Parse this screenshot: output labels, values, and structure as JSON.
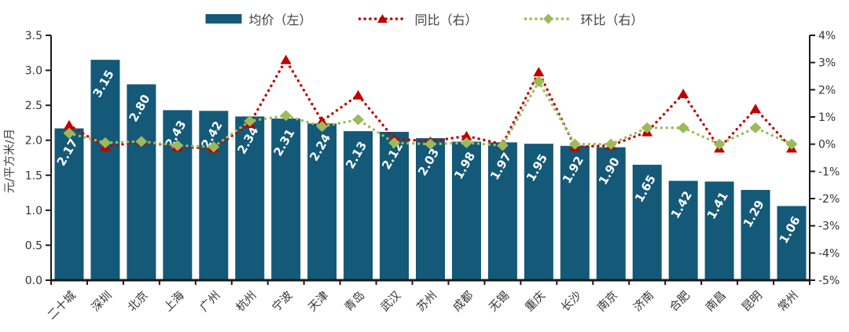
{
  "legend": {
    "items": [
      {
        "label": "均价（左）",
        "swatch": "bar",
        "color": "#145978"
      },
      {
        "label": "同比（右）",
        "swatch": "dotted-line-triangle",
        "color": "#C00000"
      },
      {
        "label": "环比（右）",
        "swatch": "dotted-line-diamond",
        "color": "#9BBB59"
      }
    ]
  },
  "chart_data": {
    "type": "bar",
    "title": "",
    "grid": false,
    "legend_position": "top",
    "categories": [
      "二十城",
      "深圳",
      "北京",
      "上海",
      "广州",
      "杭州",
      "宁波",
      "天津",
      "青岛",
      "武汉",
      "苏州",
      "成都",
      "无锡",
      "重庆",
      "长沙",
      "南京",
      "济南",
      "合肥",
      "南昌",
      "昆明",
      "常州"
    ],
    "series": [
      {
        "name": "均价（左）",
        "type": "bar",
        "axis": "left",
        "color": "#145978",
        "values": [
          2.17,
          3.15,
          2.8,
          2.43,
          2.42,
          2.34,
          2.31,
          2.24,
          2.13,
          2.12,
          2.03,
          1.98,
          1.97,
          1.95,
          1.92,
          1.9,
          1.65,
          1.42,
          1.41,
          1.29,
          1.06
        ],
        "labels": [
          "2.17",
          "3.15",
          "2.80",
          "2.43",
          "2.42",
          "2.34",
          "2.31",
          "2.24",
          "2.13",
          "2.12",
          "2.03",
          "1.98",
          "1.97",
          "1.95",
          "1.92",
          "1.90",
          "1.65",
          "1.42",
          "1.41",
          "1.29",
          "1.06"
        ]
      },
      {
        "name": "同比（右）",
        "type": "line",
        "style": "dotted",
        "axis": "right",
        "color": "#C00000",
        "marker": "triangle-up",
        "values_pct": [
          0.7,
          -0.1,
          0.1,
          -0.1,
          -0.15,
          0.75,
          3.1,
          0.85,
          1.8,
          0.2,
          0.1,
          0.3,
          0,
          2.65,
          -0.1,
          -0.05,
          0.45,
          1.85,
          -0.15,
          1.3,
          -0.15
        ]
      },
      {
        "name": "环比（右）",
        "type": "line",
        "style": "dotted",
        "axis": "right",
        "color": "#9BBB59",
        "marker": "diamond",
        "values_pct": [
          0.4,
          0.05,
          0.1,
          -0.05,
          -0.1,
          0.85,
          1.05,
          0.65,
          0.9,
          0.05,
          0,
          0.05,
          -0.05,
          2.3,
          0,
          0,
          0.6,
          0.6,
          0,
          0.6,
          0
        ]
      }
    ],
    "left_axis": {
      "title": "元/平方米/月",
      "min": 0,
      "max": 3.5,
      "step": 0.5,
      "tick_labels": [
        "0.0",
        "0.5",
        "1.0",
        "1.5",
        "2.0",
        "2.5",
        "3.0",
        "3.5"
      ]
    },
    "right_axis": {
      "min": -5,
      "max": 4,
      "step": 1,
      "tick_labels": [
        "-5%",
        "-4%",
        "-3%",
        "-2%",
        "-1%",
        "0%",
        "1%",
        "2%",
        "3%",
        "4%"
      ]
    }
  }
}
